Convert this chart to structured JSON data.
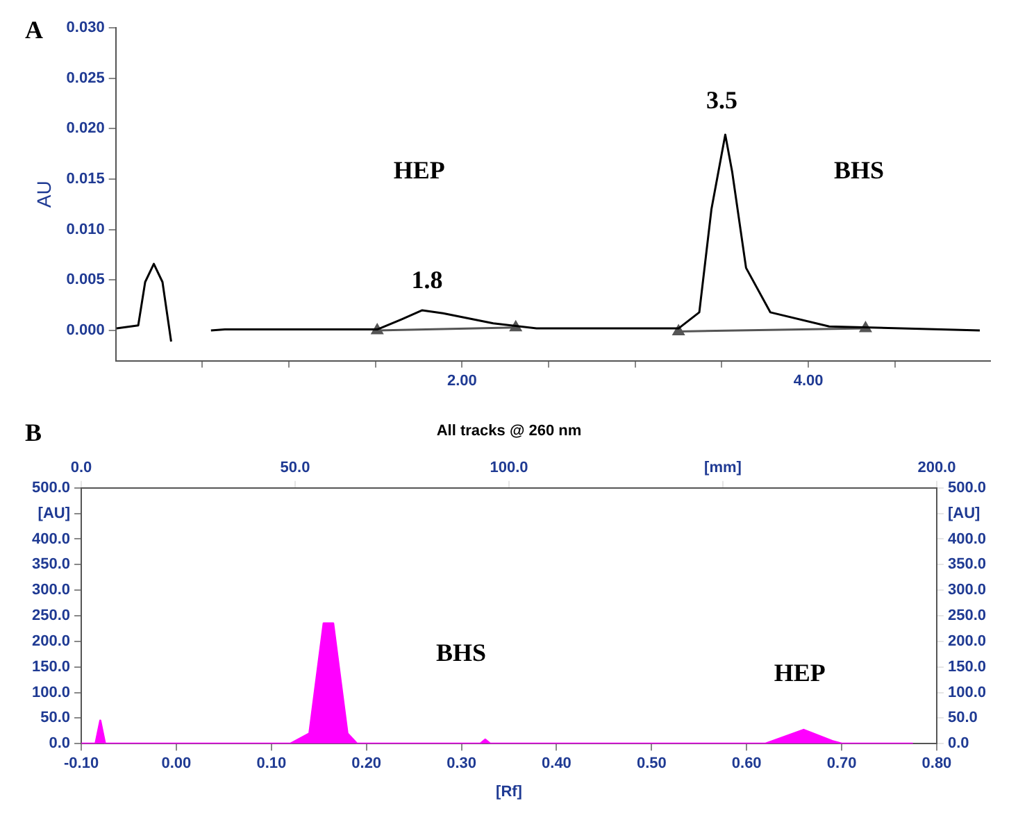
{
  "chart_data": [
    {
      "type": "line",
      "ylabel": "AU",
      "xlim": [
        0,
        5.05
      ],
      "ylim": [
        -0.003,
        0.03
      ],
      "xticks": [
        {
          "value": 0.5,
          "label": null
        },
        {
          "value": 1,
          "label": null
        },
        {
          "value": 1.5,
          "label": null
        },
        {
          "value": 2,
          "label": "2.00"
        },
        {
          "value": 2.5,
          "label": null
        },
        {
          "value": 3,
          "label": null
        },
        {
          "value": 3.5,
          "label": null
        },
        {
          "value": 4,
          "label": "4.00"
        },
        {
          "value": 4.5,
          "label": null
        }
      ],
      "yticks": [
        {
          "value": 0,
          "label": "0.000"
        },
        {
          "value": 0.005,
          "label": "0.005"
        },
        {
          "value": 0.01,
          "label": "0.010"
        },
        {
          "value": 0.015,
          "label": "0.015"
        },
        {
          "value": 0.02,
          "label": "0.020"
        },
        {
          "value": 0.025,
          "label": "0.025"
        },
        {
          "value": 0.03,
          "label": "0.030"
        }
      ],
      "grid": false,
      "legend": false,
      "series": [
        {
          "color": "#000000",
          "marker": "none",
          "x": [
            0.005,
            0.13,
            0.17,
            0.22,
            0.27,
            0.32,
            0.34,
            0.42,
            0.51,
            0.55,
            0.63,
            1.0,
            1.51,
            1.65,
            1.77,
            1.89,
            2.18,
            2.43,
            3.25,
            3.37,
            3.44,
            3.52,
            3.56,
            3.64,
            3.78,
            4.12,
            4.99
          ],
          "values": [
            0.0002,
            0.0005,
            0.0048,
            0.0066,
            0.0048,
            -0.0011,
            null,
            null,
            null,
            0,
            0.0001,
            0.0001,
            0.0001,
            0.0011,
            0.002,
            0.0017,
            0.0007,
            0.0002,
            0.0002,
            0.0018,
            0.012,
            0.0194,
            0.0157,
            0.0062,
            0.0018,
            0.0004,
            0
          ]
        },
        {
          "color": "#555555",
          "marker": "triangle",
          "x": [
            1.51,
            2.31
          ],
          "values": [
            0,
            0.0003
          ]
        },
        {
          "color": "#555555",
          "marker": "triangle",
          "x": [
            3.25,
            4.33
          ],
          "values": [
            -0.0001,
            0.0002
          ]
        }
      ],
      "annotations": [
        "A",
        "1.8",
        "3.5",
        "HEP",
        "BHS"
      ]
    },
    {
      "type": "area",
      "title": "All tracks @ 260 nm",
      "xlabel": "[Rf]",
      "xlim": [
        -0.1,
        0.8
      ],
      "ylim": [
        0,
        500
      ],
      "y2lim": [
        0,
        500
      ],
      "x2lim": [
        0,
        200
      ],
      "xticks": [
        {
          "value": -0.1,
          "label": "-0.10"
        },
        {
          "value": 0,
          "label": "0.00"
        },
        {
          "value": 0.1,
          "label": "0.10"
        },
        {
          "value": 0.2,
          "label": "0.20"
        },
        {
          "value": 0.3,
          "label": "0.30"
        },
        {
          "value": 0.4,
          "label": "0.40"
        },
        {
          "value": 0.5,
          "label": "0.50"
        },
        {
          "value": 0.6,
          "label": "0.60"
        },
        {
          "value": 0.7,
          "label": "0.70"
        },
        {
          "value": 0.8,
          "label": "0.80"
        }
      ],
      "yticks": [
        {
          "value": 0,
          "label": "0.0"
        },
        {
          "value": 50,
          "label": "50.0"
        },
        {
          "value": 100,
          "label": "100.0"
        },
        {
          "value": 150,
          "label": "150.0"
        },
        {
          "value": 200,
          "label": "200.0"
        },
        {
          "value": 250,
          "label": "250.0"
        },
        {
          "value": 300,
          "label": "300.0"
        },
        {
          "value": 350,
          "label": "350.0"
        },
        {
          "value": 400,
          "label": "400.0"
        },
        {
          "value": 450,
          "label": "[AU]"
        },
        {
          "value": 500,
          "label": "500.0"
        }
      ],
      "y2ticks": [
        {
          "value": 0,
          "label": "0.0"
        },
        {
          "value": 50,
          "label": "50.0"
        },
        {
          "value": 100,
          "label": "100.0"
        },
        {
          "value": 150,
          "label": "150.0"
        },
        {
          "value": 200,
          "label": "200.0"
        },
        {
          "value": 250,
          "label": "250.0"
        },
        {
          "value": 300,
          "label": "300.0"
        },
        {
          "value": 350,
          "label": "350.0"
        },
        {
          "value": 400,
          "label": "400.0"
        },
        {
          "value": 450,
          "label": "[AU]"
        },
        {
          "value": 500,
          "label": "500.0"
        }
      ],
      "x2ticks": [
        {
          "value": 0,
          "label": "0.0"
        },
        {
          "value": 50,
          "label": "50.0"
        },
        {
          "value": 100,
          "label": "100.0"
        },
        {
          "value": 150,
          "label": "[mm]"
        },
        {
          "value": 200,
          "label": "200.0"
        }
      ],
      "grid": false,
      "legend": false,
      "series": [
        {
          "color": "#ff00ff",
          "marker": "none",
          "x": [
            -0.1,
            -0.085,
            -0.08,
            -0.075,
            0.12,
            0.14,
            0.155,
            0.165,
            0.18,
            0.19,
            0.32,
            0.325,
            0.33,
            0.62,
            0.66,
            0.69,
            0.7,
            0.775
          ],
          "values": [
            0,
            0,
            45,
            0,
            0,
            20,
            235,
            235,
            20,
            0,
            0,
            8,
            0,
            0,
            27,
            5,
            0,
            0
          ]
        }
      ],
      "annotations": [
        "B",
        "BHS",
        "HEP"
      ]
    }
  ]
}
